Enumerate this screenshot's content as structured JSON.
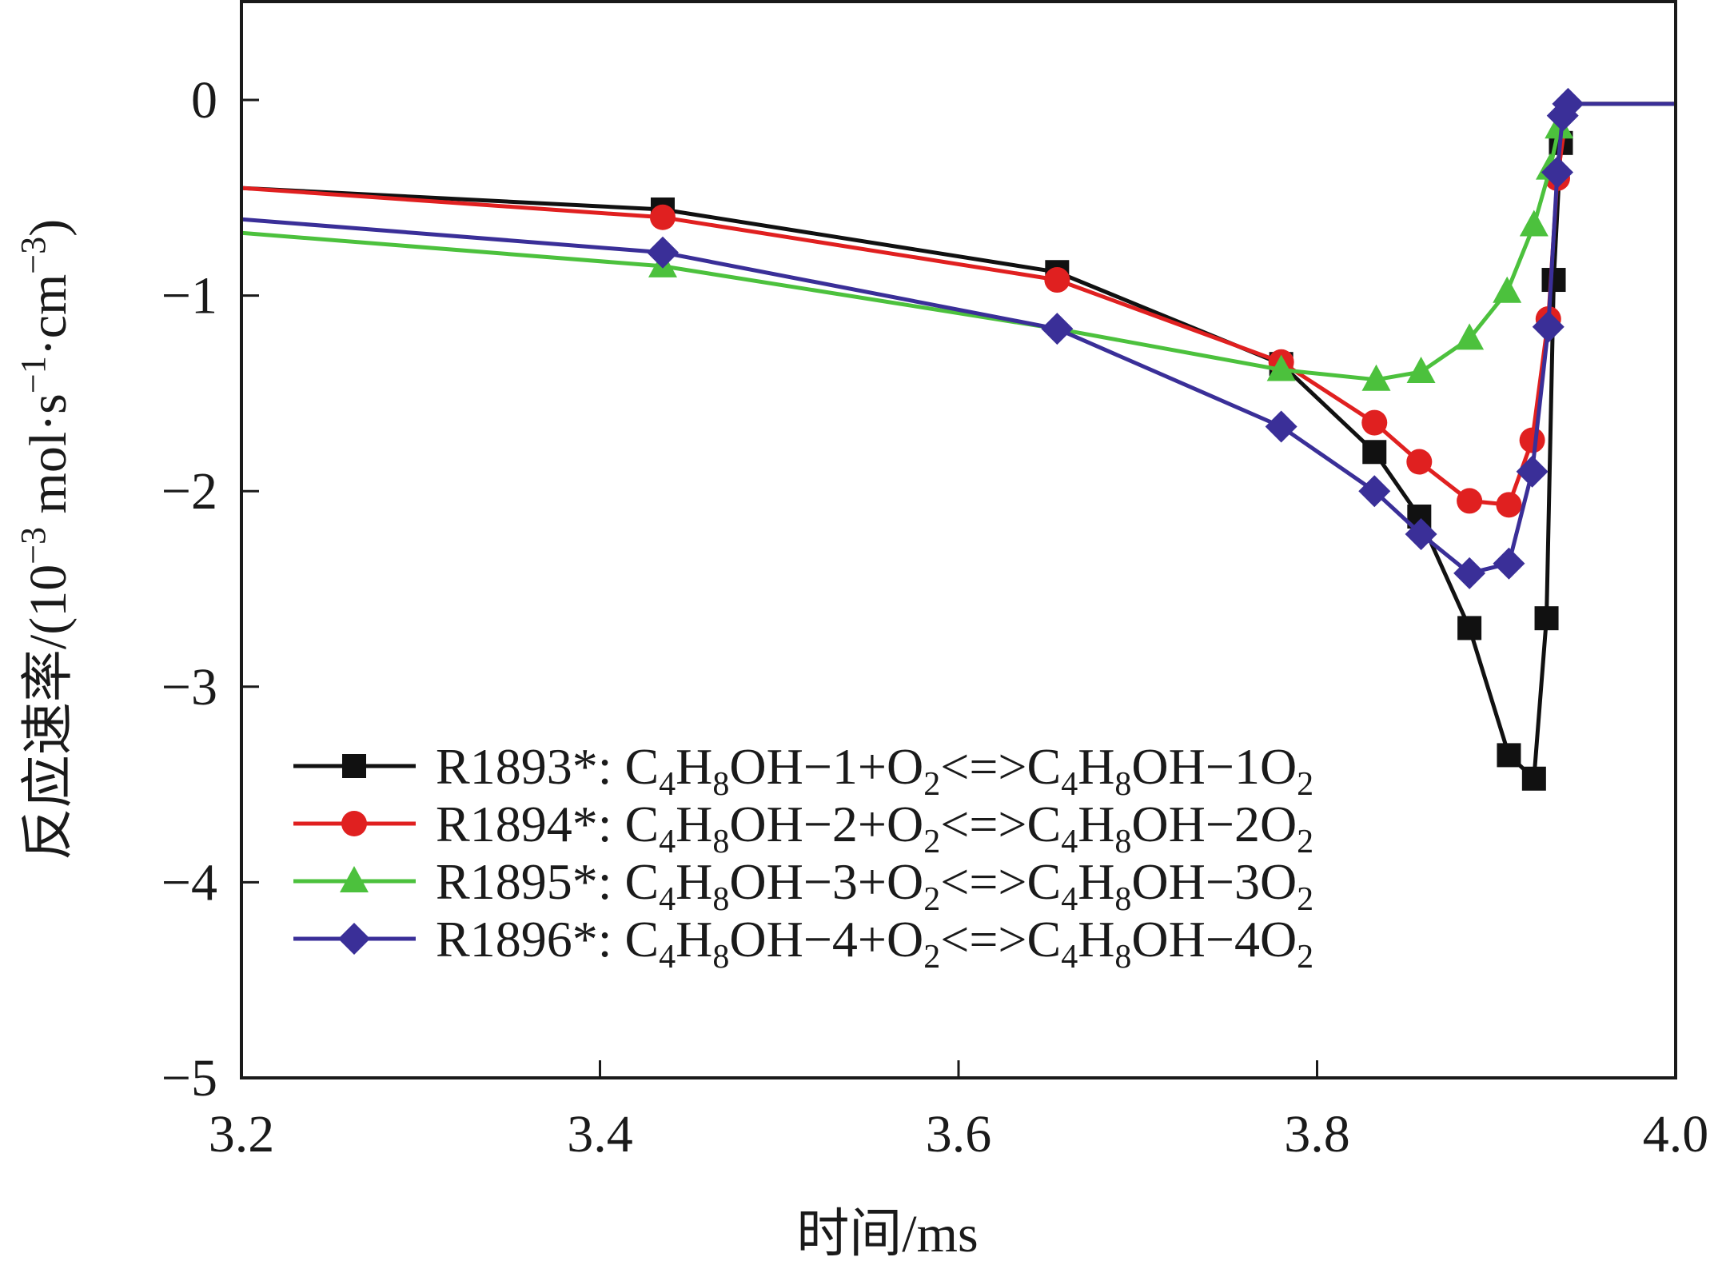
{
  "chart_data": {
    "type": "line",
    "title": "",
    "xlabel": "时间/ms",
    "ylabel_parts": {
      "prefix": "反应速率/(10",
      "exp1": "−3",
      "mid": " mol·s",
      "exp2": "−1",
      "mid2": "·cm",
      "exp3": "−3",
      "suffix": ")"
    },
    "xlim": [
      3.2,
      4.0
    ],
    "ylim": [
      -5,
      0.5
    ],
    "x_ticks": [
      3.2,
      3.4,
      3.6,
      3.8,
      4.0
    ],
    "x_tick_labels": [
      "3.2",
      "3.4",
      "3.6",
      "3.8",
      "4.0"
    ],
    "y_ticks": [
      0,
      -1,
      -2,
      -3,
      -4,
      -5
    ],
    "y_tick_labels": [
      "0",
      "−1",
      "−2",
      "−3",
      "−4",
      "−5"
    ],
    "legend_position": "bottom-left",
    "series": [
      {
        "id": "R1893",
        "name": "R1893*",
        "legend_parts": [
          "R1893*: C",
          "4",
          "H",
          "8",
          "OH−1+O",
          "2",
          "<=>C",
          "4",
          "H",
          "8",
          "OH−1O",
          "2"
        ],
        "color": "#111111",
        "marker": "square",
        "x": [
          3.2,
          3.435,
          3.655,
          3.78,
          3.832,
          3.857,
          3.885,
          3.907,
          3.921,
          3.928,
          3.932,
          3.936,
          3.94,
          4.0
        ],
        "y": [
          -0.45,
          -0.56,
          -0.88,
          -1.35,
          -1.8,
          -2.13,
          -2.7,
          -3.35,
          -3.47,
          -2.65,
          -0.92,
          -0.22,
          -0.02,
          -0.02
        ],
        "marker_x": [
          3.435,
          3.655,
          3.78,
          3.832,
          3.857,
          3.885,
          3.907,
          3.921,
          3.928,
          3.932,
          3.936
        ],
        "marker_y": [
          -0.56,
          -0.88,
          -1.35,
          -1.8,
          -2.13,
          -2.7,
          -3.35,
          -3.47,
          -2.65,
          -0.92,
          -0.22
        ]
      },
      {
        "id": "R1894",
        "name": "R1894*",
        "legend_parts": [
          "R1894*: C",
          "4",
          "H",
          "8",
          "OH−2+O",
          "2",
          "<=>C",
          "4",
          "H",
          "8",
          "OH−2O",
          "2"
        ],
        "color": "#e02020",
        "marker": "circle",
        "x": [
          3.2,
          3.435,
          3.655,
          3.78,
          3.832,
          3.857,
          3.885,
          3.907,
          3.92,
          3.929,
          3.934,
          3.94,
          4.0
        ],
        "y": [
          -0.45,
          -0.6,
          -0.92,
          -1.34,
          -1.65,
          -1.85,
          -2.05,
          -2.07,
          -1.74,
          -1.12,
          -0.4,
          -0.02,
          -0.02
        ],
        "marker_x": [
          3.435,
          3.655,
          3.78,
          3.832,
          3.857,
          3.885,
          3.907,
          3.92,
          3.929,
          3.934
        ],
        "marker_y": [
          -0.6,
          -0.92,
          -1.34,
          -1.65,
          -1.85,
          -2.05,
          -2.07,
          -1.74,
          -1.12,
          -0.4
        ]
      },
      {
        "id": "R1895",
        "name": "R1895*",
        "legend_parts": [
          "R1895*: C",
          "4",
          "H",
          "8",
          "OH−3+O",
          "2",
          "<=>C",
          "4",
          "H",
          "8",
          "OH−3O",
          "2"
        ],
        "color": "#4cc13d",
        "marker": "triangle",
        "x": [
          3.2,
          3.435,
          3.655,
          3.78,
          3.833,
          3.858,
          3.885,
          3.906,
          3.921,
          3.93,
          3.935,
          3.94,
          4.0
        ],
        "y": [
          -0.68,
          -0.85,
          -1.17,
          -1.38,
          -1.43,
          -1.39,
          -1.22,
          -0.98,
          -0.64,
          -0.35,
          -0.14,
          -0.02,
          -0.02
        ],
        "marker_x": [
          3.435,
          3.78,
          3.833,
          3.858,
          3.885,
          3.906,
          3.921,
          3.93,
          3.935
        ],
        "marker_y": [
          -0.85,
          -1.38,
          -1.43,
          -1.39,
          -1.22,
          -0.98,
          -0.64,
          -0.35,
          -0.14
        ]
      },
      {
        "id": "R1896",
        "name": "R1896*",
        "legend_parts": [
          "R1896*: C",
          "4",
          "H",
          "8",
          "OH−4+O",
          "2",
          "<=>C",
          "4",
          "H",
          "8",
          "OH−4O",
          "2"
        ],
        "color": "#3a2f98",
        "marker": "diamond",
        "x": [
          3.2,
          3.435,
          3.655,
          3.78,
          3.832,
          3.858,
          3.885,
          3.907,
          3.92,
          3.929,
          3.934,
          3.937,
          3.94,
          4.0
        ],
        "y": [
          -0.61,
          -0.78,
          -1.17,
          -1.67,
          -2.0,
          -2.22,
          -2.42,
          -2.37,
          -1.9,
          -1.16,
          -0.37,
          -0.08,
          -0.02,
          -0.02
        ],
        "marker_x": [
          3.435,
          3.655,
          3.78,
          3.832,
          3.858,
          3.885,
          3.907,
          3.92,
          3.929,
          3.934,
          3.937,
          3.94
        ],
        "marker_y": [
          -0.78,
          -1.17,
          -1.67,
          -2.0,
          -2.22,
          -2.42,
          -2.37,
          -1.9,
          -1.16,
          -0.37,
          -0.08,
          -0.02
        ]
      }
    ]
  }
}
